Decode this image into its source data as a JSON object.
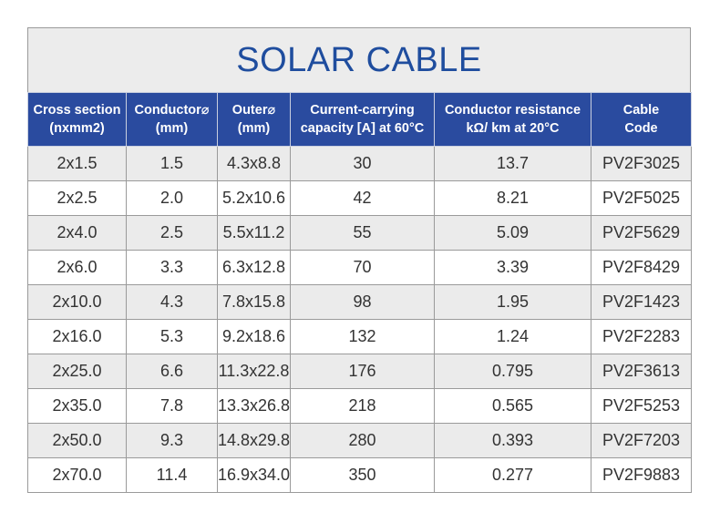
{
  "header": {
    "title": "SOLAR CABLE"
  },
  "table": {
    "columns": [
      [
        "Cross section",
        "(nxmm2)"
      ],
      [
        "Conductor⌀",
        "(mm)"
      ],
      [
        "Outer⌀",
        "(mm)"
      ],
      [
        "Current-carrying",
        "capacity [A] at 60°C"
      ],
      [
        "Conductor resistance",
        "kΩ/ km at 20°C"
      ],
      [
        "Cable",
        "Code"
      ]
    ],
    "rows": [
      [
        "2x1.5",
        "1.5",
        "4.3x8.8",
        "30",
        "13.7",
        "PV2F3025"
      ],
      [
        "2x2.5",
        "2.0",
        "5.2x10.6",
        "42",
        "8.21",
        "PV2F5025"
      ],
      [
        "2x4.0",
        "2.5",
        "5.5x11.2",
        "55",
        "5.09",
        "PV2F5629"
      ],
      [
        "2x6.0",
        "3.3",
        "6.3x12.8",
        "70",
        "3.39",
        "PV2F8429"
      ],
      [
        "2x10.0",
        "4.3",
        "7.8x15.8",
        "98",
        "1.95",
        "PV2F1423"
      ],
      [
        "2x16.0",
        "5.3",
        "9.2x18.6",
        "132",
        "1.24",
        "PV2F2283"
      ],
      [
        "2x25.0",
        "6.6",
        "11.3x22.8",
        "176",
        "0.795",
        "PV2F3613"
      ],
      [
        "2x35.0",
        "7.8",
        "13.3x26.8",
        "218",
        "0.565",
        "PV2F5253"
      ],
      [
        "2x50.0",
        "9.3",
        "14.8x29.8",
        "280",
        "0.393",
        "PV2F7203"
      ],
      [
        "2x70.0",
        "11.4",
        "16.9x34.0",
        "350",
        "0.277",
        "PV2F9883"
      ]
    ]
  }
}
